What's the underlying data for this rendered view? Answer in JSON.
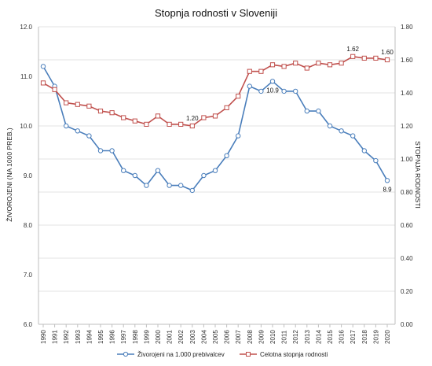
{
  "chart_data": {
    "type": "line",
    "title": "Stopnja rodnosti v Sloveniji",
    "categories": [
      "1990",
      "1991",
      "1992",
      "1993",
      "1994",
      "1995",
      "1996",
      "1997",
      "1998",
      "1999",
      "2000",
      "2001",
      "2002",
      "2003",
      "2004",
      "2005",
      "2006",
      "2007",
      "2008",
      "2009",
      "2010",
      "2011",
      "2012",
      "2013",
      "2014",
      "2015",
      "2016",
      "2017",
      "2018",
      "2019",
      "2020"
    ],
    "ylabel": "ŽIVOROJENI (NA 1000 PREB.)",
    "y2label": "STOPNJA RODNOSTI",
    "ylim": [
      6.0,
      12.0
    ],
    "y2lim": [
      0.0,
      1.8
    ],
    "yticks": [
      "6.0",
      "7.0",
      "8.0",
      "9.0",
      "10.0",
      "11.0",
      "12.0"
    ],
    "y2ticks": [
      "0.00",
      "0.20",
      "0.40",
      "0.60",
      "0.80",
      "1.00",
      "1.20",
      "1.40",
      "1.60",
      "1.80"
    ],
    "grid": true,
    "legend_position": "bottom",
    "series": [
      {
        "name": "Živorojeni na 1.000 prebivalcev",
        "axis": "left",
        "color": "#4a7ebb",
        "marker": "circle",
        "values": [
          11.2,
          10.8,
          10.0,
          9.9,
          9.8,
          9.5,
          9.5,
          9.1,
          9.0,
          8.8,
          9.1,
          8.8,
          8.8,
          8.7,
          9.0,
          9.1,
          9.4,
          9.8,
          10.8,
          10.7,
          10.9,
          10.7,
          10.7,
          10.3,
          10.3,
          10.0,
          9.9,
          9.8,
          9.5,
          9.3,
          8.9
        ]
      },
      {
        "name": "Celotna stopnja rodnosti",
        "axis": "right",
        "color": "#c0504d",
        "marker": "square",
        "values": [
          1.46,
          1.42,
          1.34,
          1.33,
          1.32,
          1.29,
          1.28,
          1.25,
          1.23,
          1.21,
          1.26,
          1.21,
          1.21,
          1.2,
          1.25,
          1.26,
          1.31,
          1.38,
          1.53,
          1.53,
          1.57,
          1.56,
          1.58,
          1.55,
          1.58,
          1.57,
          1.58,
          1.62,
          1.61,
          1.61,
          1.6
        ]
      }
    ],
    "annotations": [
      {
        "series": 1,
        "index": 13,
        "text": "1.20",
        "pos": "above"
      },
      {
        "series": 1,
        "index": 27,
        "text": "1.62",
        "pos": "above"
      },
      {
        "series": 1,
        "index": 30,
        "text": "1.60",
        "pos": "above"
      },
      {
        "series": 0,
        "index": 20,
        "text": "10.9",
        "pos": "below"
      },
      {
        "series": 0,
        "index": 30,
        "text": "8.9",
        "pos": "below"
      }
    ]
  }
}
